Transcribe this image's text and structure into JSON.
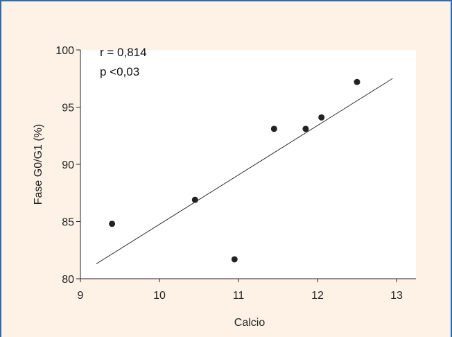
{
  "chart_data": {
    "type": "scatter",
    "xlabel": "Calcio",
    "ylabel": "Fase G0/G1 (%)",
    "xlim": [
      9,
      13
    ],
    "ylim": [
      80,
      100
    ],
    "xticks": [
      9,
      10,
      11,
      12,
      13
    ],
    "yticks": [
      80,
      85,
      90,
      95,
      100
    ],
    "points": [
      {
        "x": 9.4,
        "y": 84.8
      },
      {
        "x": 10.45,
        "y": 86.9
      },
      {
        "x": 10.95,
        "y": 81.7
      },
      {
        "x": 11.45,
        "y": 93.1
      },
      {
        "x": 11.85,
        "y": 93.1
      },
      {
        "x": 12.05,
        "y": 94.1
      },
      {
        "x": 12.5,
        "y": 97.2
      }
    ],
    "regression": {
      "x1": 9.2,
      "y1": 81.3,
      "x2": 12.95,
      "y2": 97.5
    },
    "annotations": [
      "r = 0,814",
      "p <0,03"
    ],
    "grid": false,
    "colors": {
      "background": "#fdf2e5",
      "border": "#2a6db5",
      "marker": "#222222",
      "line": "#333333"
    }
  }
}
